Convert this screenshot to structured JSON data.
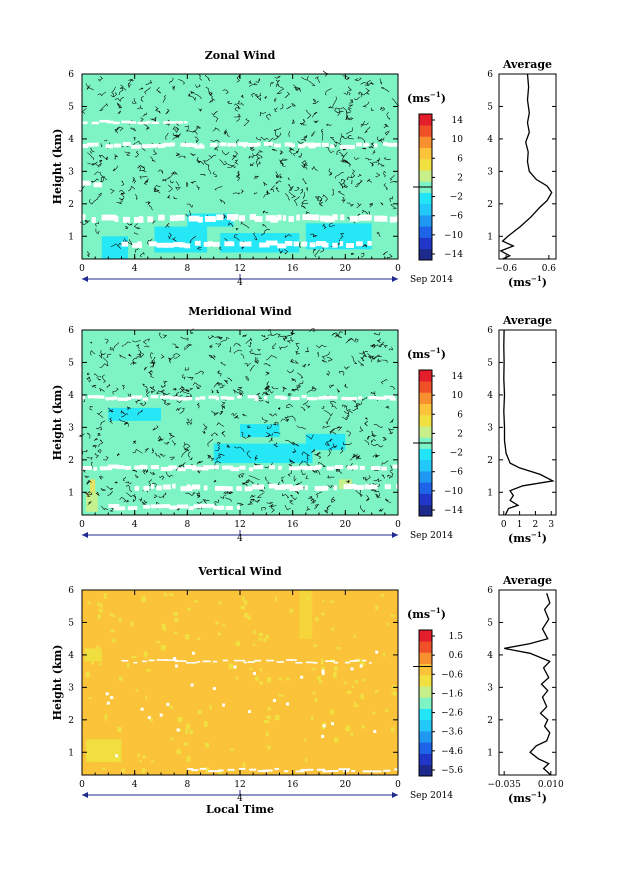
{
  "page": {
    "x_label": "Local Time",
    "date_label": "Sep 2014",
    "day_label": "4"
  },
  "chart_data": [
    {
      "type": "heatmap",
      "title": "Zonal Wind",
      "ylabel": "Height (km)",
      "xlabel": "",
      "x_ticks": [
        "0",
        "4",
        "8",
        "12",
        "16",
        "20",
        "0"
      ],
      "xlim": [
        0,
        24
      ],
      "y_ticks": [
        "1",
        "2",
        "3",
        "4",
        "5",
        "6"
      ],
      "ylim": [
        0.3,
        6
      ],
      "background_color": "#7ef4c4",
      "unit_label": "(ms",
      "unit_exp": "−1",
      "colorbar_ticks": [
        "14",
        "10",
        "6",
        "2",
        "−2",
        "−6",
        "−10",
        "−14"
      ],
      "colorbar_range": [
        -16,
        16
      ],
      "patches": [
        {
          "x": [
            1.5,
            3.5
          ],
          "y": [
            0.3,
            1.0
          ],
          "color": "#22e6f8"
        },
        {
          "x": [
            5.5,
            9.5
          ],
          "y": [
            0.5,
            1.3
          ],
          "color": "#22e6f8"
        },
        {
          "x": [
            10.5,
            16.5
          ],
          "y": [
            0.5,
            1.1
          ],
          "color": "#22e6f8"
        },
        {
          "x": [
            17.0,
            22.0
          ],
          "y": [
            0.6,
            1.4
          ],
          "color": "#22e6f8"
        },
        {
          "x": [
            8.0,
            11.5
          ],
          "y": [
            1.3,
            1.7
          ],
          "color": "#22e6f8"
        }
      ],
      "white_bands": [
        {
          "y": 3.8,
          "x": [
            0,
            24
          ],
          "h": 0.12
        },
        {
          "y": 4.5,
          "x": [
            0,
            8
          ],
          "h": 0.08
        },
        {
          "y": 2.6,
          "x": [
            0,
            1.5
          ],
          "h": 0.15
        },
        {
          "y": 1.55,
          "x": [
            0,
            24
          ],
          "h": 0.18
        },
        {
          "y": 0.75,
          "x": [
            3,
            22
          ],
          "h": 0.15
        }
      ],
      "average": {
        "title": "Average",
        "x_ticks": [
          "−0.6",
          "0.6"
        ],
        "xlim": [
          -0.8,
          0.8
        ],
        "y_ticks": [
          "1",
          "2",
          "3",
          "4",
          "5",
          "6"
        ],
        "ylim": [
          0.3,
          6
        ],
        "xlabel_base": "(ms",
        "xlabel_exp": "−1",
        "profile": [
          [
            -0.7,
            0.3
          ],
          [
            -0.5,
            0.4
          ],
          [
            -0.75,
            0.55
          ],
          [
            -0.4,
            0.7
          ],
          [
            -0.7,
            0.85
          ],
          [
            -0.55,
            1.0
          ],
          [
            -0.2,
            1.3
          ],
          [
            0.1,
            1.6
          ],
          [
            0.35,
            1.9
          ],
          [
            0.55,
            2.1
          ],
          [
            0.68,
            2.35
          ],
          [
            0.55,
            2.55
          ],
          [
            0.25,
            2.75
          ],
          [
            0.05,
            3.0
          ],
          [
            0.0,
            3.3
          ],
          [
            0.02,
            3.6
          ],
          [
            -0.05,
            3.9
          ],
          [
            0.05,
            4.2
          ],
          [
            0.0,
            4.5
          ],
          [
            0.05,
            4.8
          ],
          [
            0.0,
            5.2
          ],
          [
            0.03,
            5.6
          ],
          [
            0.0,
            6.0
          ]
        ]
      }
    },
    {
      "type": "heatmap",
      "title": "Meridional Wind",
      "ylabel": "Height (km)",
      "xlabel": "",
      "x_ticks": [
        "0",
        "4",
        "8",
        "12",
        "16",
        "20",
        "0"
      ],
      "xlim": [
        0,
        24
      ],
      "y_ticks": [
        "1",
        "2",
        "3",
        "4",
        "5",
        "6"
      ],
      "ylim": [
        0.3,
        6
      ],
      "background_color": "#7ef4c4",
      "unit_label": "(ms",
      "unit_exp": "−1",
      "colorbar_ticks": [
        "14",
        "10",
        "6",
        "2",
        "−2",
        "−6",
        "−10",
        "−14"
      ],
      "colorbar_range": [
        -16,
        16
      ],
      "patches": [
        {
          "x": [
            10.0,
            17.5
          ],
          "y": [
            1.9,
            2.5
          ],
          "color": "#22e6f8"
        },
        {
          "x": [
            12.0,
            15.0
          ],
          "y": [
            2.7,
            3.1
          ],
          "color": "#22e6f8"
        },
        {
          "x": [
            2.0,
            6.0
          ],
          "y": [
            3.2,
            3.6
          ],
          "color": "#22e6f8"
        },
        {
          "x": [
            17.0,
            20.0
          ],
          "y": [
            2.3,
            2.8
          ],
          "color": "#22e6f8"
        },
        {
          "x": [
            0.3,
            1.2
          ],
          "y": [
            0.4,
            1.0
          ],
          "color": "#c8f08a"
        },
        {
          "x": [
            0.6,
            1.0
          ],
          "y": [
            1.0,
            1.4
          ],
          "color": "#e8e060"
        },
        {
          "x": [
            19.5,
            20.5
          ],
          "y": [
            1.1,
            1.4
          ],
          "color": "#c8f08a"
        }
      ],
      "white_bands": [
        {
          "y": 3.9,
          "x": [
            0,
            24
          ],
          "h": 0.1
        },
        {
          "y": 1.75,
          "x": [
            0,
            24
          ],
          "h": 0.12
        },
        {
          "y": 1.15,
          "x": [
            4,
            24
          ],
          "h": 0.15
        },
        {
          "y": 0.55,
          "x": [
            2,
            12
          ],
          "h": 0.12
        }
      ],
      "average": {
        "title": "Average",
        "x_ticks": [
          "0",
          "1",
          "2",
          "3"
        ],
        "xlim": [
          -0.3,
          3.3
        ],
        "y_ticks": [
          "1",
          "2",
          "3",
          "4",
          "5",
          "6"
        ],
        "ylim": [
          0.3,
          6
        ],
        "xlabel_base": "(ms",
        "xlabel_exp": "−1",
        "profile": [
          [
            0.1,
            0.3
          ],
          [
            0.3,
            0.5
          ],
          [
            0.9,
            0.6
          ],
          [
            0.4,
            0.75
          ],
          [
            0.6,
            0.9
          ],
          [
            0.4,
            1.05
          ],
          [
            1.2,
            1.2
          ],
          [
            3.1,
            1.35
          ],
          [
            2.3,
            1.55
          ],
          [
            1.0,
            1.75
          ],
          [
            0.4,
            1.9
          ],
          [
            0.15,
            2.2
          ],
          [
            0.05,
            2.6
          ],
          [
            0.05,
            3.0
          ],
          [
            0.0,
            3.5
          ],
          [
            0.05,
            4.0
          ],
          [
            0.0,
            4.5
          ],
          [
            0.02,
            5.0
          ],
          [
            0.0,
            5.5
          ],
          [
            0.02,
            6.0
          ]
        ]
      }
    },
    {
      "type": "heatmap",
      "title": "Vertical Wind",
      "ylabel": "Height (km)",
      "xlabel": "Local Time",
      "x_ticks": [
        "0",
        "4",
        "8",
        "12",
        "16",
        "20",
        "0"
      ],
      "xlim": [
        0,
        24
      ],
      "y_ticks": [
        "1",
        "2",
        "3",
        "4",
        "5",
        "6"
      ],
      "ylim": [
        0.3,
        6
      ],
      "background_color": "#fbc33a",
      "unit_label": "(ms",
      "unit_exp": "−1",
      "colorbar_ticks": [
        "1.5",
        "0.6",
        "−0.6",
        "−1.6",
        "−2.6",
        "−3.6",
        "−4.6",
        "−5.6"
      ],
      "colorbar_range": [
        -6.0,
        2.0
      ],
      "patches": [
        {
          "x": [
            0.3,
            3.0
          ],
          "y": [
            0.7,
            1.4
          ],
          "color": "#f0e040"
        },
        {
          "x": [
            0.2,
            1.5
          ],
          "y": [
            3.8,
            4.2
          ],
          "color": "#f0e040"
        },
        {
          "x": [
            16.5,
            17.5
          ],
          "y": [
            4.5,
            6.0
          ],
          "color": "#f4d63a"
        }
      ],
      "white_bands": [
        {
          "y": 3.8,
          "x": [
            3,
            22
          ],
          "h": 0.05
        },
        {
          "y": 0.45,
          "x": [
            8,
            24
          ],
          "h": 0.06
        }
      ],
      "average": {
        "title": "Average",
        "x_ticks": [
          "−0.035",
          "0.010"
        ],
        "xlim": [
          -0.04,
          0.015
        ],
        "y_ticks": [
          "1",
          "2",
          "3",
          "4",
          "5",
          "6"
        ],
        "ylim": [
          0.3,
          6
        ],
        "xlabel_base": "(ms",
        "xlabel_exp": "−1",
        "profile": [
          [
            0.01,
            0.3
          ],
          [
            0.003,
            0.5
          ],
          [
            0.008,
            0.65
          ],
          [
            -0.002,
            0.8
          ],
          [
            -0.01,
            1.0
          ],
          [
            -0.004,
            1.2
          ],
          [
            0.006,
            1.35
          ],
          [
            0.009,
            1.6
          ],
          [
            0.004,
            1.8
          ],
          [
            0.007,
            2.0
          ],
          [
            0.0,
            2.2
          ],
          [
            0.006,
            2.4
          ],
          [
            0.002,
            2.7
          ],
          [
            0.007,
            2.9
          ],
          [
            0.001,
            3.1
          ],
          [
            0.008,
            3.3
          ],
          [
            0.003,
            3.6
          ],
          [
            0.009,
            3.8
          ],
          [
            -0.01,
            4.05
          ],
          [
            -0.035,
            4.2
          ],
          [
            -0.01,
            4.35
          ],
          [
            0.007,
            4.5
          ],
          [
            0.002,
            4.8
          ],
          [
            0.008,
            5.1
          ],
          [
            0.004,
            5.4
          ],
          [
            0.009,
            5.6
          ],
          [
            0.006,
            5.9
          ]
        ]
      }
    }
  ]
}
